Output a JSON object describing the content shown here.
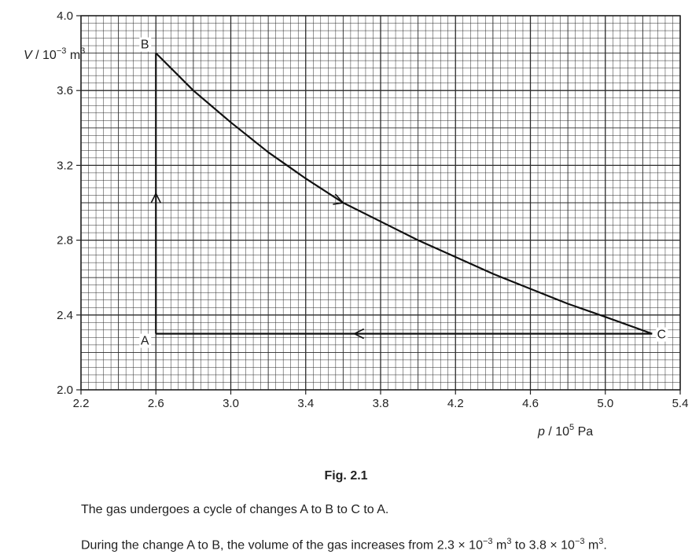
{
  "chart_data": {
    "type": "line",
    "x_axis": {
      "var": "p",
      "unit": "10",
      "unit_exp": "5",
      "unit_tail": "Pa",
      "min": 2.2,
      "max": 5.4,
      "ticks": [
        "2.2",
        "2.6",
        "3.0",
        "3.4",
        "3.8",
        "4.2",
        "4.6",
        "5.0",
        "5.4"
      ]
    },
    "y_axis": {
      "var": "V",
      "unit": "10",
      "unit_exp": "−3",
      "unit_tail": "m",
      "unit_tail_exp": "3",
      "min": 2.0,
      "max": 4.0,
      "ticks": [
        "2.0",
        "2.4",
        "2.8",
        "3.2",
        "3.6",
        "4.0"
      ]
    },
    "grid": true,
    "points": [
      {
        "label": "A",
        "p": 2.6,
        "V": 2.3
      },
      {
        "label": "B",
        "p": 2.6,
        "V": 3.8
      },
      {
        "label": "C",
        "p": 5.25,
        "V": 2.3
      }
    ],
    "paths": [
      {
        "from": "A",
        "to": "B",
        "shape": "straight"
      },
      {
        "from": "B",
        "to": "C",
        "shape": "curve",
        "x": [
          2.6,
          2.8,
          3.0,
          3.2,
          3.4,
          3.6,
          3.8,
          4.0,
          4.2,
          4.4,
          4.6,
          4.8,
          5.0,
          5.25
        ],
        "y": [
          3.8,
          3.6,
          3.43,
          3.27,
          3.13,
          3.0,
          2.9,
          2.8,
          2.71,
          2.62,
          2.54,
          2.46,
          2.39,
          2.3
        ]
      },
      {
        "from": "C",
        "to": "A",
        "shape": "straight"
      }
    ]
  },
  "caption": "Fig. 2.1",
  "text": {
    "para1": "The gas undergoes a cycle of changes A to B to C to A.",
    "para2_a": "During the change A to B, the volume of the gas increases from 2.3 × 10",
    "para2_exp1": "−3",
    "para2_b": " m",
    "para2_exp2": "3",
    "para2_c": " to 3.8 × 10",
    "para2_exp3": "−3",
    "para2_d": " m",
    "para2_exp4": "3",
    "para2_e": "."
  }
}
